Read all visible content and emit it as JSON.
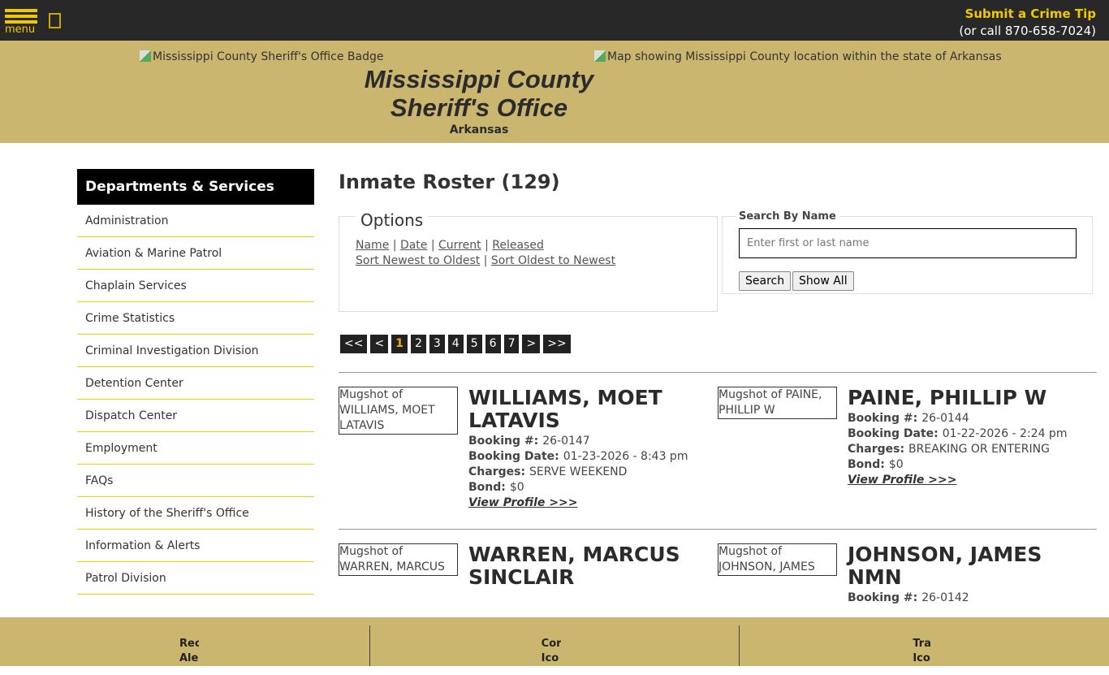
{
  "topbar": {
    "menu_label": "menu",
    "tip_title": "Submit a Crime Tip",
    "tip_phone": "(or call 870-658-7024)"
  },
  "header": {
    "badge_alt": "Mississippi County Sheriff's Office Badge",
    "map_alt": "Map showing Mississippi County location within the state of Arkansas",
    "title": "Mississippi County Sheriff's Office",
    "state": "Arkansas"
  },
  "sidebar": {
    "title": "Departments & Services",
    "items": [
      "Administration",
      "Aviation & Marine Patrol",
      "Chaplain Services",
      "Crime Statistics",
      "Criminal Investigation Division",
      "Detention Center",
      "Dispatch Center",
      "Employment",
      "FAQs",
      "History of the Sheriff's Office",
      "Information & Alerts",
      "Patrol Division"
    ]
  },
  "main": {
    "title": "Inmate Roster (129)",
    "options": {
      "title": "Options",
      "links1": [
        "Name",
        "Date",
        "Current",
        "Released"
      ],
      "links2": [
        "Sort Newest to Oldest",
        "Sort Oldest to Newest"
      ]
    },
    "search": {
      "title": "Search By Name",
      "placeholder": "Enter first or last name",
      "search_btn": "Search",
      "showall_btn": "Show All"
    },
    "pager": [
      "<<",
      "<",
      "1",
      "2",
      "3",
      "4",
      "5",
      "6",
      "7",
      ">",
      ">>"
    ],
    "current_page": "1",
    "labels": {
      "booking": "Booking #:",
      "date": "Booking Date:",
      "charges": "Charges:",
      "bond": "Bond:",
      "profile": "View Profile >>>"
    },
    "inmates": [
      {
        "name": "WILLIAMS, MOET LATAVIS",
        "mug_alt": "Mugshot of WILLIAMS, MOET LATAVIS",
        "booking": "26-0147",
        "date": "01-23-2026 - 8:43 pm",
        "charges": "SERVE WEEKEND",
        "bond": "$0"
      },
      {
        "name": "PAINE, PHILLIP W",
        "mug_alt": "Mugshot of PAINE, PHILLIP W",
        "booking": "26-0144",
        "date": "01-22-2026 - 2:24 pm",
        "charges": "BREAKING OR ENTERING",
        "bond": "$0"
      },
      {
        "name": "WARREN, MARCUS SINCLAIR",
        "mug_alt": "Mugshot of WARREN, MARCUS"
      },
      {
        "name": "JOHNSON, JAMES NMN",
        "mug_alt": "Mugshot of JOHNSON, JAMES",
        "booking": "26-0142"
      }
    ]
  },
  "footer": [
    "Rec\nAler",
    "Cor\nIco",
    "Tra\nIco"
  ]
}
